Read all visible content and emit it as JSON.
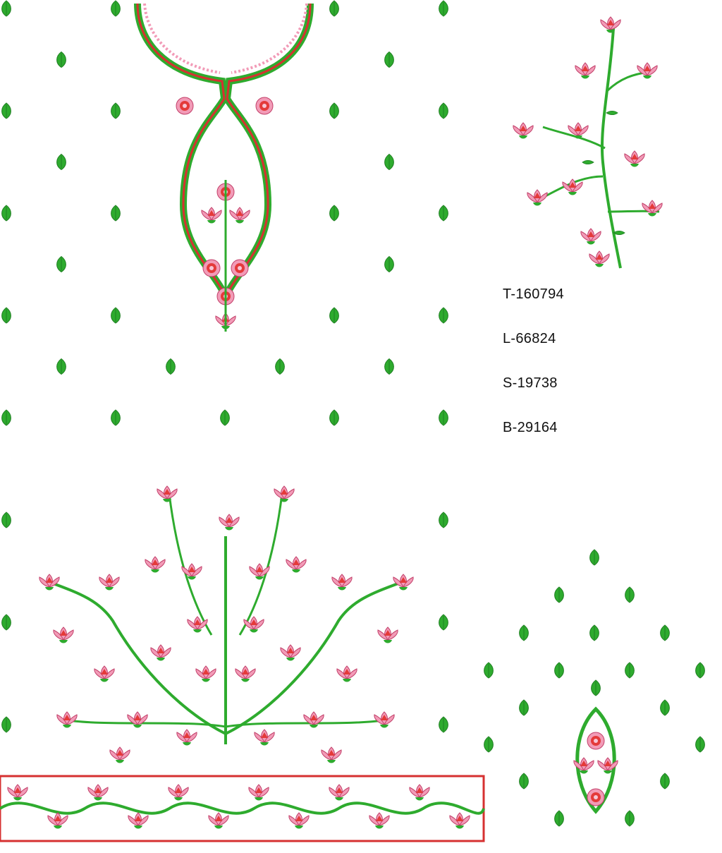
{
  "colors": {
    "background": "#ffffff",
    "leaf_green": "#2eab2e",
    "leaf_dark": "#1f7f22",
    "petal_pink": "#f29bb7",
    "petal_red": "#e43a3a",
    "border_red": "#d63030",
    "text": "#111111"
  },
  "icons": {
    "motif": "green-leaf-buti-icon",
    "flower": "pink-lotus-flower-icon"
  },
  "stitch_codes": [
    {
      "label": "T-160794"
    },
    {
      "label": "L-66824"
    },
    {
      "label": "S-19738"
    },
    {
      "label": "B-29164"
    }
  ]
}
